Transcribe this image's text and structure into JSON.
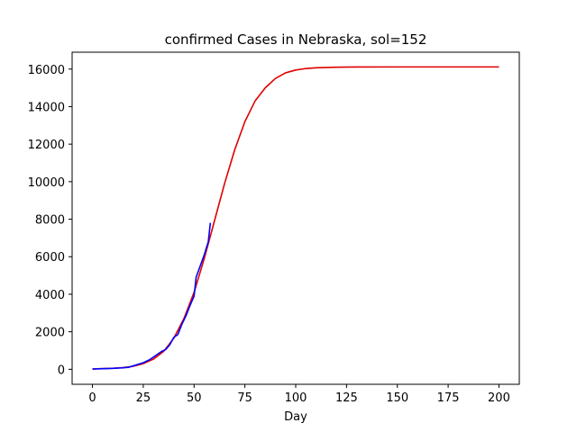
{
  "chart_data": {
    "type": "line",
    "title": "confirmed Cases in Nebraska, sol=152",
    "xlabel": "Day",
    "ylabel": "",
    "xlim": [
      -10,
      210
    ],
    "ylim": [
      -800,
      16900
    ],
    "xticks": [
      0,
      25,
      50,
      75,
      100,
      125,
      150,
      175,
      200
    ],
    "yticks": [
      0,
      2000,
      4000,
      6000,
      8000,
      10000,
      12000,
      14000,
      16000
    ],
    "grid": false,
    "series": [
      {
        "color": "#e00000",
        "points": [
          [
            0,
            20
          ],
          [
            5,
            35
          ],
          [
            10,
            55
          ],
          [
            15,
            90
          ],
          [
            20,
            160
          ],
          [
            25,
            300
          ],
          [
            30,
            540
          ],
          [
            35,
            950
          ],
          [
            40,
            1650
          ],
          [
            45,
            2700
          ],
          [
            50,
            4100
          ],
          [
            55,
            5900
          ],
          [
            60,
            7900
          ],
          [
            65,
            9900
          ],
          [
            70,
            11700
          ],
          [
            75,
            13200
          ],
          [
            80,
            14300
          ],
          [
            85,
            15000
          ],
          [
            90,
            15500
          ],
          [
            95,
            15800
          ],
          [
            100,
            15950
          ],
          [
            105,
            16030
          ],
          [
            110,
            16070
          ],
          [
            120,
            16100
          ],
          [
            130,
            16110
          ],
          [
            150,
            16115
          ],
          [
            175,
            16115
          ],
          [
            200,
            16115
          ]
        ]
      },
      {
        "color": "#0000ff",
        "points": [
          [
            0,
            10
          ],
          [
            5,
            30
          ],
          [
            10,
            50
          ],
          [
            15,
            80
          ],
          [
            18,
            110
          ],
          [
            20,
            180
          ],
          [
            22,
            250
          ],
          [
            25,
            350
          ],
          [
            28,
            500
          ],
          [
            30,
            650
          ],
          [
            32,
            800
          ],
          [
            34,
            950
          ],
          [
            36,
            1050
          ],
          [
            38,
            1300
          ],
          [
            40,
            1700
          ],
          [
            42,
            1850
          ],
          [
            44,
            2400
          ],
          [
            46,
            2850
          ],
          [
            48,
            3400
          ],
          [
            50,
            3900
          ],
          [
            51,
            4900
          ],
          [
            53,
            5500
          ],
          [
            55,
            6100
          ],
          [
            57,
            6800
          ],
          [
            58,
            7800
          ]
        ]
      }
    ]
  }
}
